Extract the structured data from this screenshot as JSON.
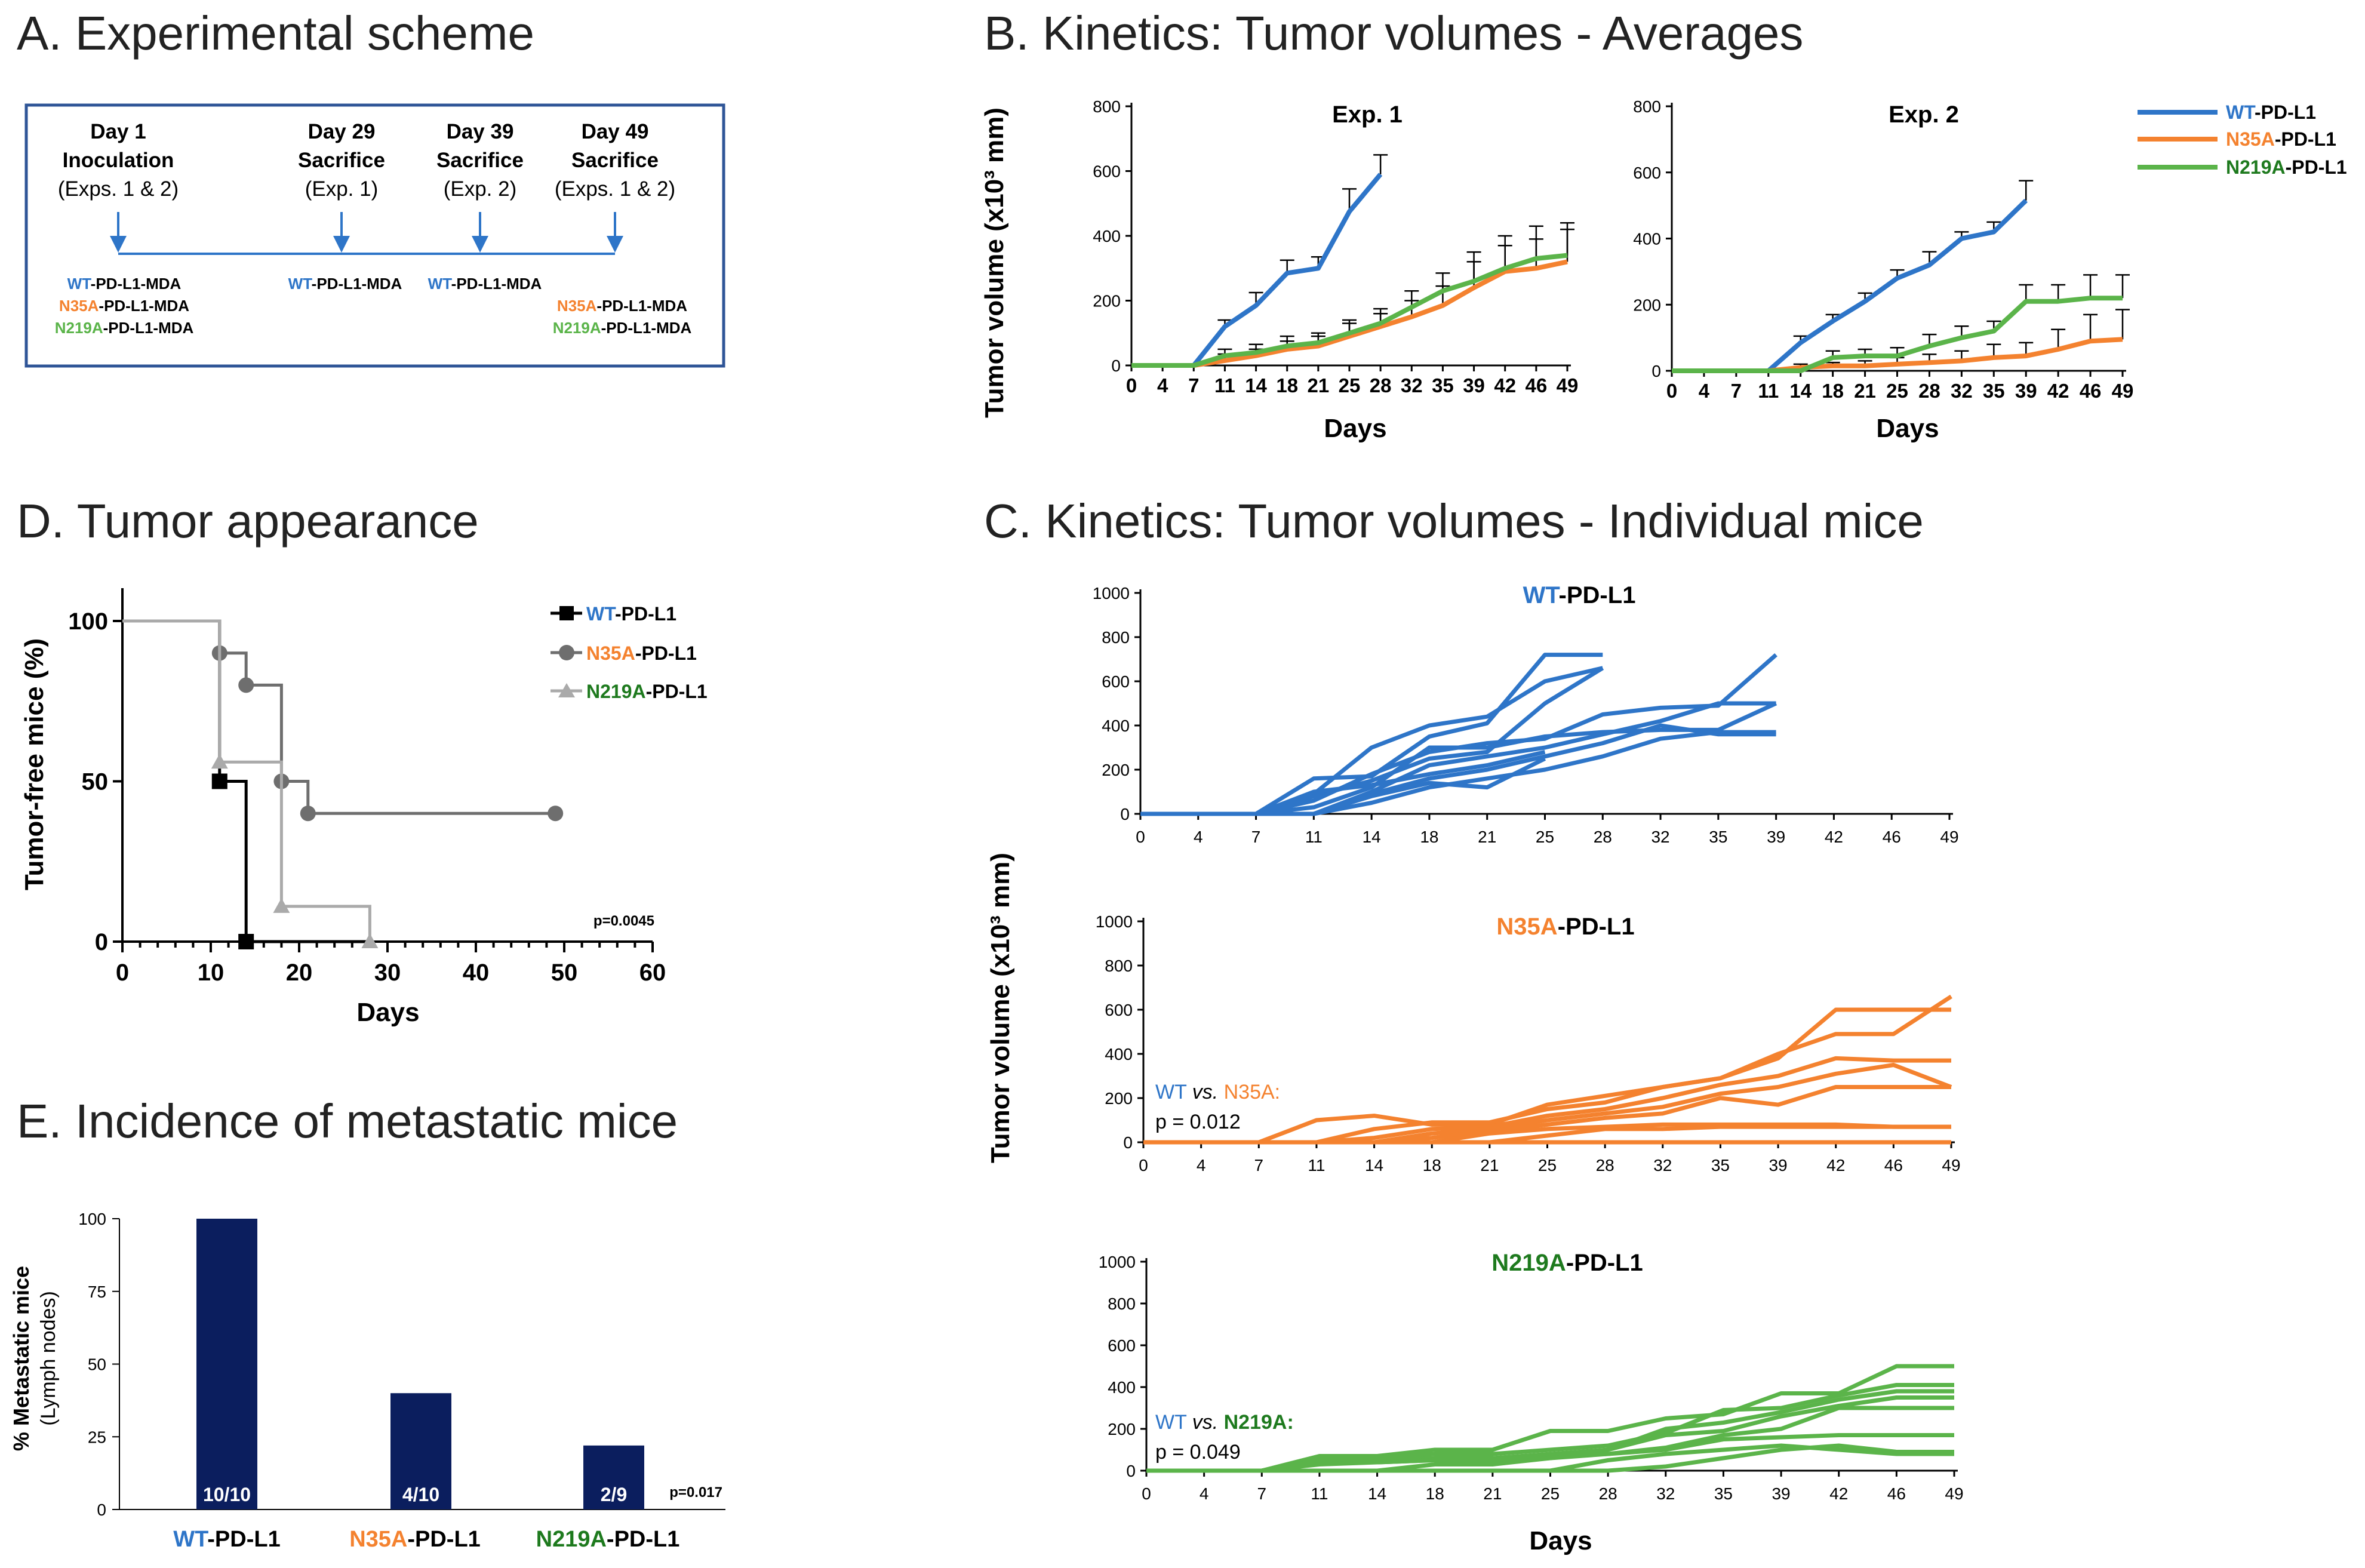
{
  "colors": {
    "wt": "#2E75C8",
    "n35a": "#F4822F",
    "n219a": "#5BB44A",
    "n219a_text": "#1E7A1E",
    "bar": "#0B1E5E",
    "frame": "#2F5597",
    "arrow": "#2E75C8"
  },
  "panels": {
    "a": {
      "title": "A. Experimental scheme"
    },
    "b": {
      "title": "B. Kinetics: Tumor volumes - Averages"
    },
    "c": {
      "title": "C. Kinetics: Tumor volumes - Individual mice"
    },
    "d": {
      "title": "D. Tumor appearance"
    },
    "e": {
      "title": "E. Incidence of metastatic mice"
    }
  },
  "groups": {
    "wt": "WT",
    "n35a": "N35A",
    "n219a": "N219A",
    "suffix": "-PD-L1",
    "mda": "-PD-L1-MDA"
  },
  "scheme": {
    "events": [
      {
        "day": "Day 1",
        "label": "Inoculation",
        "note": "(Exps. 1 & 2)"
      },
      {
        "day": "Day 29",
        "label": "Sacrifice",
        "note": "(Exp. 1)"
      },
      {
        "day": "Day 39",
        "label": "Sacrifice",
        "note": "(Exp. 2)"
      },
      {
        "day": "Day 49",
        "label": "Sacrifice",
        "note": "(Exps. 1 & 2)"
      }
    ]
  },
  "chart_data": [
    {
      "id": "B-exp1",
      "type": "line",
      "title": "Exp. 1",
      "ylabel": "Tumor volume (x10³ mm)",
      "xlabel": "Days",
      "categories": [
        "0",
        "4",
        "7",
        "11",
        "14",
        "18",
        "21",
        "25",
        "28",
        "32",
        "35",
        "39",
        "42",
        "46",
        "49"
      ],
      "ylim": [
        0,
        800
      ],
      "yticks": [
        0,
        200,
        400,
        600,
        800
      ],
      "series": [
        {
          "name": "WT-PD-L1",
          "key": "wt",
          "values": [
            0,
            0,
            0,
            120,
            185,
            285,
            300,
            475,
            590,
            null,
            null,
            null,
            null,
            null,
            null
          ],
          "err": [
            0,
            0,
            0,
            20,
            40,
            40,
            35,
            70,
            60,
            0,
            0,
            0,
            0,
            0,
            0
          ]
        },
        {
          "name": "N35A-PD-L1",
          "key": "n35a",
          "values": [
            0,
            0,
            0,
            15,
            30,
            50,
            60,
            90,
            120,
            150,
            185,
            240,
            290,
            300,
            320
          ],
          "err": [
            0,
            0,
            0,
            20,
            20,
            25,
            30,
            40,
            40,
            50,
            60,
            80,
            80,
            90,
            100
          ]
        },
        {
          "name": "N219A-PD-L1",
          "key": "n219a",
          "values": [
            0,
            0,
            0,
            30,
            40,
            60,
            70,
            100,
            130,
            180,
            230,
            260,
            300,
            330,
            340
          ],
          "err": [
            0,
            0,
            0,
            20,
            25,
            30,
            30,
            40,
            45,
            50,
            55,
            90,
            100,
            100,
            100
          ]
        }
      ]
    },
    {
      "id": "B-exp2",
      "type": "line",
      "title": "Exp. 2",
      "xlabel": "Days",
      "categories": [
        "0",
        "4",
        "7",
        "11",
        "14",
        "18",
        "21",
        "25",
        "28",
        "32",
        "35",
        "39",
        "42",
        "46",
        "49"
      ],
      "ylim": [
        0,
        800
      ],
      "yticks": [
        0,
        200,
        400,
        600,
        800
      ],
      "series": [
        {
          "name": "WT-PD-L1",
          "key": "wt",
          "values": [
            0,
            0,
            0,
            0,
            85,
            150,
            210,
            280,
            320,
            400,
            420,
            515,
            null,
            null,
            null
          ],
          "err": [
            0,
            0,
            0,
            0,
            20,
            20,
            25,
            25,
            40,
            20,
            30,
            60,
            0,
            0,
            0
          ]
        },
        {
          "name": "N35A-PD-L1",
          "key": "n35a",
          "values": [
            0,
            0,
            0,
            0,
            10,
            15,
            15,
            20,
            25,
            30,
            40,
            45,
            65,
            90,
            95
          ],
          "err": [
            0,
            0,
            0,
            0,
            10,
            10,
            15,
            20,
            25,
            30,
            40,
            40,
            60,
            80,
            90
          ]
        },
        {
          "name": "N219A-PD-L1",
          "key": "n219a",
          "values": [
            0,
            0,
            0,
            0,
            0,
            40,
            45,
            45,
            75,
            100,
            120,
            210,
            210,
            220,
            220
          ],
          "err": [
            0,
            0,
            0,
            0,
            0,
            20,
            20,
            25,
            35,
            35,
            30,
            50,
            50,
            70,
            70
          ]
        }
      ]
    },
    {
      "id": "C-wt",
      "type": "line",
      "title": "WT-PD-L1",
      "key": "wt",
      "ylim": [
        0,
        1000
      ],
      "categories": [
        "0",
        "4",
        "7",
        "11",
        "14",
        "18",
        "21",
        "25",
        "28",
        "32",
        "35",
        "39",
        "42",
        "46",
        "49"
      ],
      "lines": [
        [
          0,
          0,
          0,
          160,
          170,
          350,
          410,
          720,
          720,
          null,
          null,
          null,
          null,
          null,
          null
        ],
        [
          0,
          0,
          0,
          90,
          300,
          400,
          440,
          600,
          660,
          null,
          null,
          null,
          null,
          null,
          null
        ],
        [
          0,
          0,
          0,
          80,
          150,
          250,
          280,
          500,
          660,
          null,
          null,
          null,
          null,
          null,
          null
        ],
        [
          0,
          0,
          0,
          60,
          180,
          280,
          320,
          340,
          450,
          480,
          490,
          720,
          null,
          null,
          null
        ],
        [
          0,
          0,
          0,
          30,
          120,
          300,
          300,
          350,
          370,
          380,
          380,
          500,
          null,
          null,
          null
        ],
        [
          0,
          0,
          0,
          0,
          100,
          220,
          260,
          300,
          360,
          420,
          500,
          500,
          null,
          null,
          null
        ],
        [
          0,
          0,
          0,
          0,
          90,
          160,
          200,
          260,
          320,
          400,
          360,
          360,
          null,
          null,
          null
        ],
        [
          0,
          0,
          0,
          0,
          50,
          120,
          160,
          200,
          260,
          340,
          370,
          370,
          null,
          null,
          null
        ],
        [
          0,
          0,
          0,
          100,
          130,
          180,
          220,
          280,
          null,
          null,
          null,
          null,
          null,
          null,
          null
        ],
        [
          0,
          0,
          0,
          0,
          80,
          140,
          120,
          250,
          null,
          null,
          null,
          null,
          null,
          null,
          null
        ]
      ]
    },
    {
      "id": "C-n35a",
      "type": "line",
      "title": "N35A-PD-L1",
      "key": "n35a",
      "ylim": [
        0,
        1000
      ],
      "categories": [
        "0",
        "4",
        "7",
        "11",
        "14",
        "18",
        "21",
        "25",
        "28",
        "32",
        "35",
        "39",
        "42",
        "46",
        "49"
      ],
      "lines": [
        [
          0,
          0,
          0,
          100,
          120,
          80,
          80,
          170,
          210,
          250,
          290,
          380,
          600,
          600,
          600
        ],
        [
          0,
          0,
          0,
          0,
          60,
          90,
          90,
          150,
          180,
          250,
          290,
          400,
          490,
          490,
          660
        ],
        [
          0,
          0,
          0,
          0,
          20,
          60,
          70,
          120,
          150,
          200,
          260,
          300,
          380,
          370,
          370
        ],
        [
          0,
          0,
          0,
          0,
          0,
          40,
          60,
          100,
          130,
          160,
          220,
          250,
          310,
          350,
          250
        ],
        [
          0,
          0,
          0,
          0,
          0,
          20,
          50,
          80,
          110,
          130,
          200,
          170,
          250,
          250,
          250
        ],
        [
          0,
          0,
          0,
          0,
          0,
          0,
          40,
          60,
          70,
          80,
          80,
          80,
          80,
          70,
          70
        ],
        [
          0,
          0,
          0,
          0,
          0,
          0,
          0,
          30,
          60,
          60,
          70,
          70,
          70,
          70,
          70
        ],
        [
          0,
          0,
          0,
          0,
          0,
          0,
          0,
          0,
          0,
          0,
          0,
          0,
          0,
          0,
          0
        ]
      ],
      "annotation": {
        "a": "WT",
        "vs": "vs.",
        "b": "N35A:",
        "p": "p = 0.012"
      }
    },
    {
      "id": "C-n219a",
      "type": "line",
      "title": "N219A-PD-L1",
      "key": "n219a",
      "ylim": [
        0,
        1000
      ],
      "categories": [
        "0",
        "4",
        "7",
        "11",
        "14",
        "18",
        "21",
        "25",
        "28",
        "32",
        "35",
        "39",
        "42",
        "46",
        "49"
      ],
      "lines": [
        [
          0,
          0,
          0,
          70,
          70,
          100,
          100,
          190,
          190,
          250,
          270,
          370,
          370,
          500,
          500
        ],
        [
          0,
          0,
          0,
          60,
          60,
          80,
          80,
          100,
          120,
          180,
          290,
          300,
          360,
          410,
          410
        ],
        [
          0,
          0,
          0,
          50,
          50,
          60,
          60,
          80,
          100,
          200,
          230,
          280,
          340,
          380,
          380
        ],
        [
          0,
          0,
          0,
          40,
          40,
          50,
          50,
          60,
          100,
          170,
          190,
          260,
          310,
          350,
          350
        ],
        [
          0,
          0,
          0,
          30,
          40,
          50,
          50,
          70,
          80,
          110,
          170,
          200,
          300,
          300,
          300
        ],
        [
          0,
          0,
          0,
          0,
          0,
          30,
          30,
          60,
          80,
          100,
          150,
          160,
          170,
          170,
          170
        ],
        [
          0,
          0,
          0,
          0,
          0,
          0,
          0,
          0,
          50,
          80,
          100,
          120,
          100,
          80,
          80
        ],
        [
          0,
          0,
          0,
          0,
          0,
          0,
          0,
          0,
          0,
          20,
          60,
          100,
          120,
          90,
          90
        ]
      ],
      "annotation": {
        "a": "WT",
        "vs": "vs.",
        "b": "N219A:",
        "p": "p = 0.049"
      }
    },
    {
      "id": "C-axes",
      "ylabel": "Tumor volume (x10³ mm)",
      "xlabel": "Days",
      "yticks": [
        0,
        200,
        400,
        600,
        800,
        1000
      ]
    },
    {
      "id": "D",
      "type": "line",
      "title": "Tumor appearance",
      "xlabel": "Days",
      "ylabel": "Tumor-free mice (%)",
      "xlim": [
        0,
        60
      ],
      "ylim": [
        0,
        100
      ],
      "xticks": [
        0,
        10,
        20,
        30,
        40,
        50,
        60
      ],
      "yticks": [
        0,
        50,
        100
      ],
      "series": [
        {
          "name": "WT-PD-L1",
          "marker": "square",
          "color": "#000000",
          "steps": [
            [
              0,
              100
            ],
            [
              11,
              100
            ],
            [
              11,
              50
            ],
            [
              14,
              50
            ],
            [
              14,
              0
            ],
            [
              28,
              0
            ]
          ],
          "markers": [
            [
              11,
              50
            ],
            [
              14,
              0
            ]
          ]
        },
        {
          "name": "N35A-PD-L1",
          "marker": "circle",
          "color": "#6E6E6E",
          "steps": [
            [
              0,
              100
            ],
            [
              11,
              100
            ],
            [
              11,
              90
            ],
            [
              14,
              90
            ],
            [
              14,
              80
            ],
            [
              18,
              80
            ],
            [
              18,
              50
            ],
            [
              21,
              50
            ],
            [
              21,
              40
            ],
            [
              49,
              40
            ]
          ],
          "markers": [
            [
              11,
              90
            ],
            [
              14,
              80
            ],
            [
              18,
              50
            ],
            [
              21,
              40
            ],
            [
              49,
              40
            ]
          ]
        },
        {
          "name": "N219A-PD-L1",
          "marker": "triangle",
          "color": "#AAAAAA",
          "steps": [
            [
              0,
              100
            ],
            [
              11,
              100
            ],
            [
              11,
              56
            ],
            [
              18,
              56
            ],
            [
              18,
              11
            ],
            [
              28,
              11
            ],
            [
              28,
              0
            ]
          ],
          "markers": [
            [
              11,
              56
            ],
            [
              18,
              11
            ],
            [
              28,
              0
            ]
          ]
        }
      ],
      "pvalue": "p=0.0045"
    },
    {
      "id": "E",
      "type": "bar",
      "ylabel": "% Metastatic mice",
      "ylabel2": "(Lymph nodes)",
      "categories": [
        "WT-PD-L1",
        "N35A-PD-L1",
        "N219A-PD-L1"
      ],
      "values": [
        100,
        40,
        22
      ],
      "labels": [
        "10/10",
        "4/10",
        "2/9"
      ],
      "ylim": [
        0,
        100
      ],
      "yticks": [
        0,
        25,
        50,
        75,
        100
      ],
      "pvalue": "p=0.017"
    }
  ]
}
